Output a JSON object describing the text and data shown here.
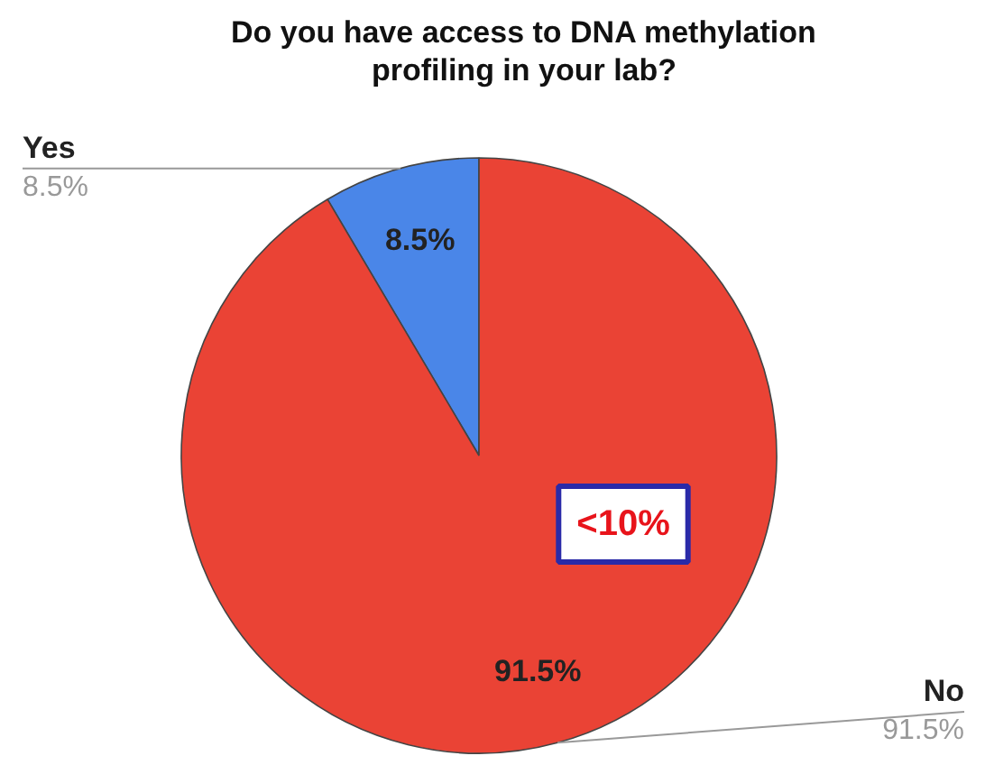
{
  "chart_data": {
    "type": "pie",
    "title": "Do you have access to DNA methylation profiling in your lab?",
    "categories": [
      "Yes",
      "No"
    ],
    "values": [
      8.5,
      91.5
    ],
    "colors": [
      "#4a86e8",
      "#ea4335"
    ],
    "value_labels": [
      "8.5%",
      "91.5%"
    ],
    "annotations": [
      "<10%"
    ]
  }
}
